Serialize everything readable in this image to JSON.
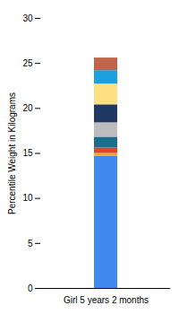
{
  "chart_data": {
    "type": "bar",
    "stacked": true,
    "categories": [
      "Girl 5 years 2 months"
    ],
    "ylabel": "Percentile Weight in Kilograms",
    "ylim": [
      0,
      30
    ],
    "yticks": [
      0,
      5,
      10,
      15,
      20,
      25,
      30
    ],
    "series": [
      {
        "color": "#4189ee",
        "values": [
          14.7
        ]
      },
      {
        "color": "#f5a623",
        "values": [
          0.3
        ]
      },
      {
        "color": "#e0452b",
        "values": [
          0.6
        ]
      },
      {
        "color": "#1a6e8e",
        "values": [
          1.2
        ]
      },
      {
        "color": "#bdbdbd",
        "values": [
          1.6
        ]
      },
      {
        "color": "#1f3864",
        "values": [
          2.0
        ]
      },
      {
        "color": "#ffe082",
        "values": [
          2.3
        ]
      },
      {
        "color": "#1ea0e0",
        "values": [
          1.5
        ]
      },
      {
        "color": "#c0654a",
        "values": [
          1.4
        ]
      }
    ]
  }
}
